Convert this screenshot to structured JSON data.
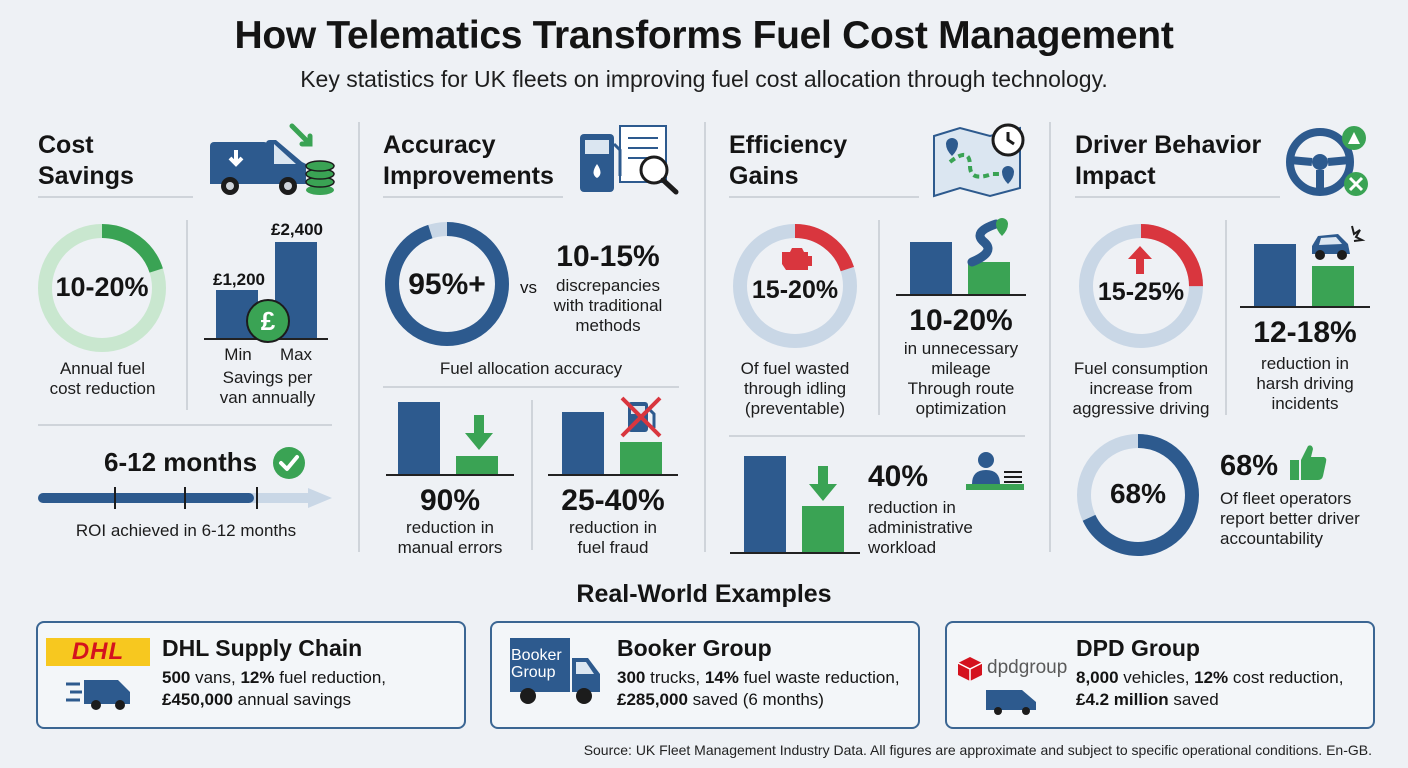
{
  "header": {
    "title": "How Telematics Transforms Fuel Cost Management",
    "subtitle": "Key statistics for UK fleets on improving fuel cost allocation through technology."
  },
  "cost_savings": {
    "title_line1": "Cost",
    "title_line2": "Savings",
    "ring_value": "10-20%",
    "ring_fraction": 0.2,
    "ring_caption_1": "Annual fuel",
    "ring_caption_2": "cost reduction",
    "bar_min_label": "£1,200",
    "bar_max_label": "£2,400",
    "bar_min_value": 1200,
    "bar_max_value": 2400,
    "axis_min": "Min",
    "axis_max": "Max",
    "bar_caption_1": "Savings per",
    "bar_caption_2": "van annually",
    "roi_value": "6-12 months",
    "roi_caption": "ROI achieved in 6-12 months"
  },
  "accuracy": {
    "title_line1": "Accuracy",
    "title_line2": "Improvements",
    "ring_value": "95%+",
    "ring_fraction": 0.95,
    "vs_label": "vs",
    "discrepancy_value": "10-15%",
    "discrepancy_caption_1": "discrepancies",
    "discrepancy_caption_2": "with traditional",
    "discrepancy_caption_3": "methods",
    "ring_caption": "Fuel allocation accuracy",
    "errors_value": "90%",
    "errors_caption_1": "reduction in",
    "errors_caption_2": "manual errors",
    "fraud_value": "25-40%",
    "fraud_caption_1": "reduction in",
    "fraud_caption_2": "fuel fraud"
  },
  "efficiency": {
    "title_line1": "Efficiency",
    "title_line2": "Gains",
    "ring_value": "15-20%",
    "ring_fraction": 0.2,
    "ring_caption_1": "Of fuel wasted",
    "ring_caption_2": "through idling",
    "ring_caption_3": "(preventable)",
    "mileage_value": "10-20%",
    "mileage_caption_1": "in unnecessary",
    "mileage_caption_2": "mileage",
    "mileage_caption_3": "Through route",
    "mileage_caption_4": "optimization",
    "admin_value": "40%",
    "admin_caption_1": "reduction in",
    "admin_caption_2": "administrative",
    "admin_caption_3": "workload"
  },
  "driver": {
    "title_line1": "Driver Behavior",
    "title_line2": "Impact",
    "ring_value": "15-25%",
    "ring_fraction": 0.25,
    "ring_caption_1": "Fuel consumption",
    "ring_caption_2": "increase from",
    "ring_caption_3": "aggressive driving",
    "harsh_value": "12-18%",
    "harsh_caption_1": "reduction in",
    "harsh_caption_2": "harsh driving",
    "harsh_caption_3": "incidents",
    "acc_ring_value": "68%",
    "acc_ring_fraction": 0.68,
    "acc_value": "68%",
    "acc_caption_1": "Of fleet operators",
    "acc_caption_2": "report better driver",
    "acc_caption_3": "accountability"
  },
  "examples": {
    "heading": "Real-World Examples",
    "items": [
      {
        "logo_text": "DHL",
        "name": "DHL Supply Chain",
        "line1_bold_a": "500",
        "line1_a": " vans, ",
        "line1_bold_b": "12%",
        "line1_b": " fuel reduction,",
        "line2_bold": "£450,000",
        "line2": " annual savings"
      },
      {
        "logo_text_1": "Booker",
        "logo_text_2": "Group",
        "name": "Booker Group",
        "line1_bold_a": "300",
        "line1_a": " trucks, ",
        "line1_bold_b": "14%",
        "line1_b": " fuel waste reduction,",
        "line2_bold": "£285,000",
        "line2": " saved (6 months)"
      },
      {
        "logo_text": "dpdgroup",
        "name": "DPD Group",
        "line1_bold_a": "8,000",
        "line1_a": " vehicles, ",
        "line1_bold_b": "12%",
        "line1_b": " cost reduction,",
        "line2_bold": "£4.2 million",
        "line2": " saved"
      }
    ]
  },
  "footer": {
    "source": "Source: UK Fleet Management Industry Data. All figures are approximate and subject to specific operational conditions. En-GB."
  },
  "colors": {
    "blue": "#2d5a8e",
    "green": "#3aa354",
    "red": "#d9363e",
    "light_track": "#c9d7e6",
    "light_green": "#c9e7cf"
  }
}
